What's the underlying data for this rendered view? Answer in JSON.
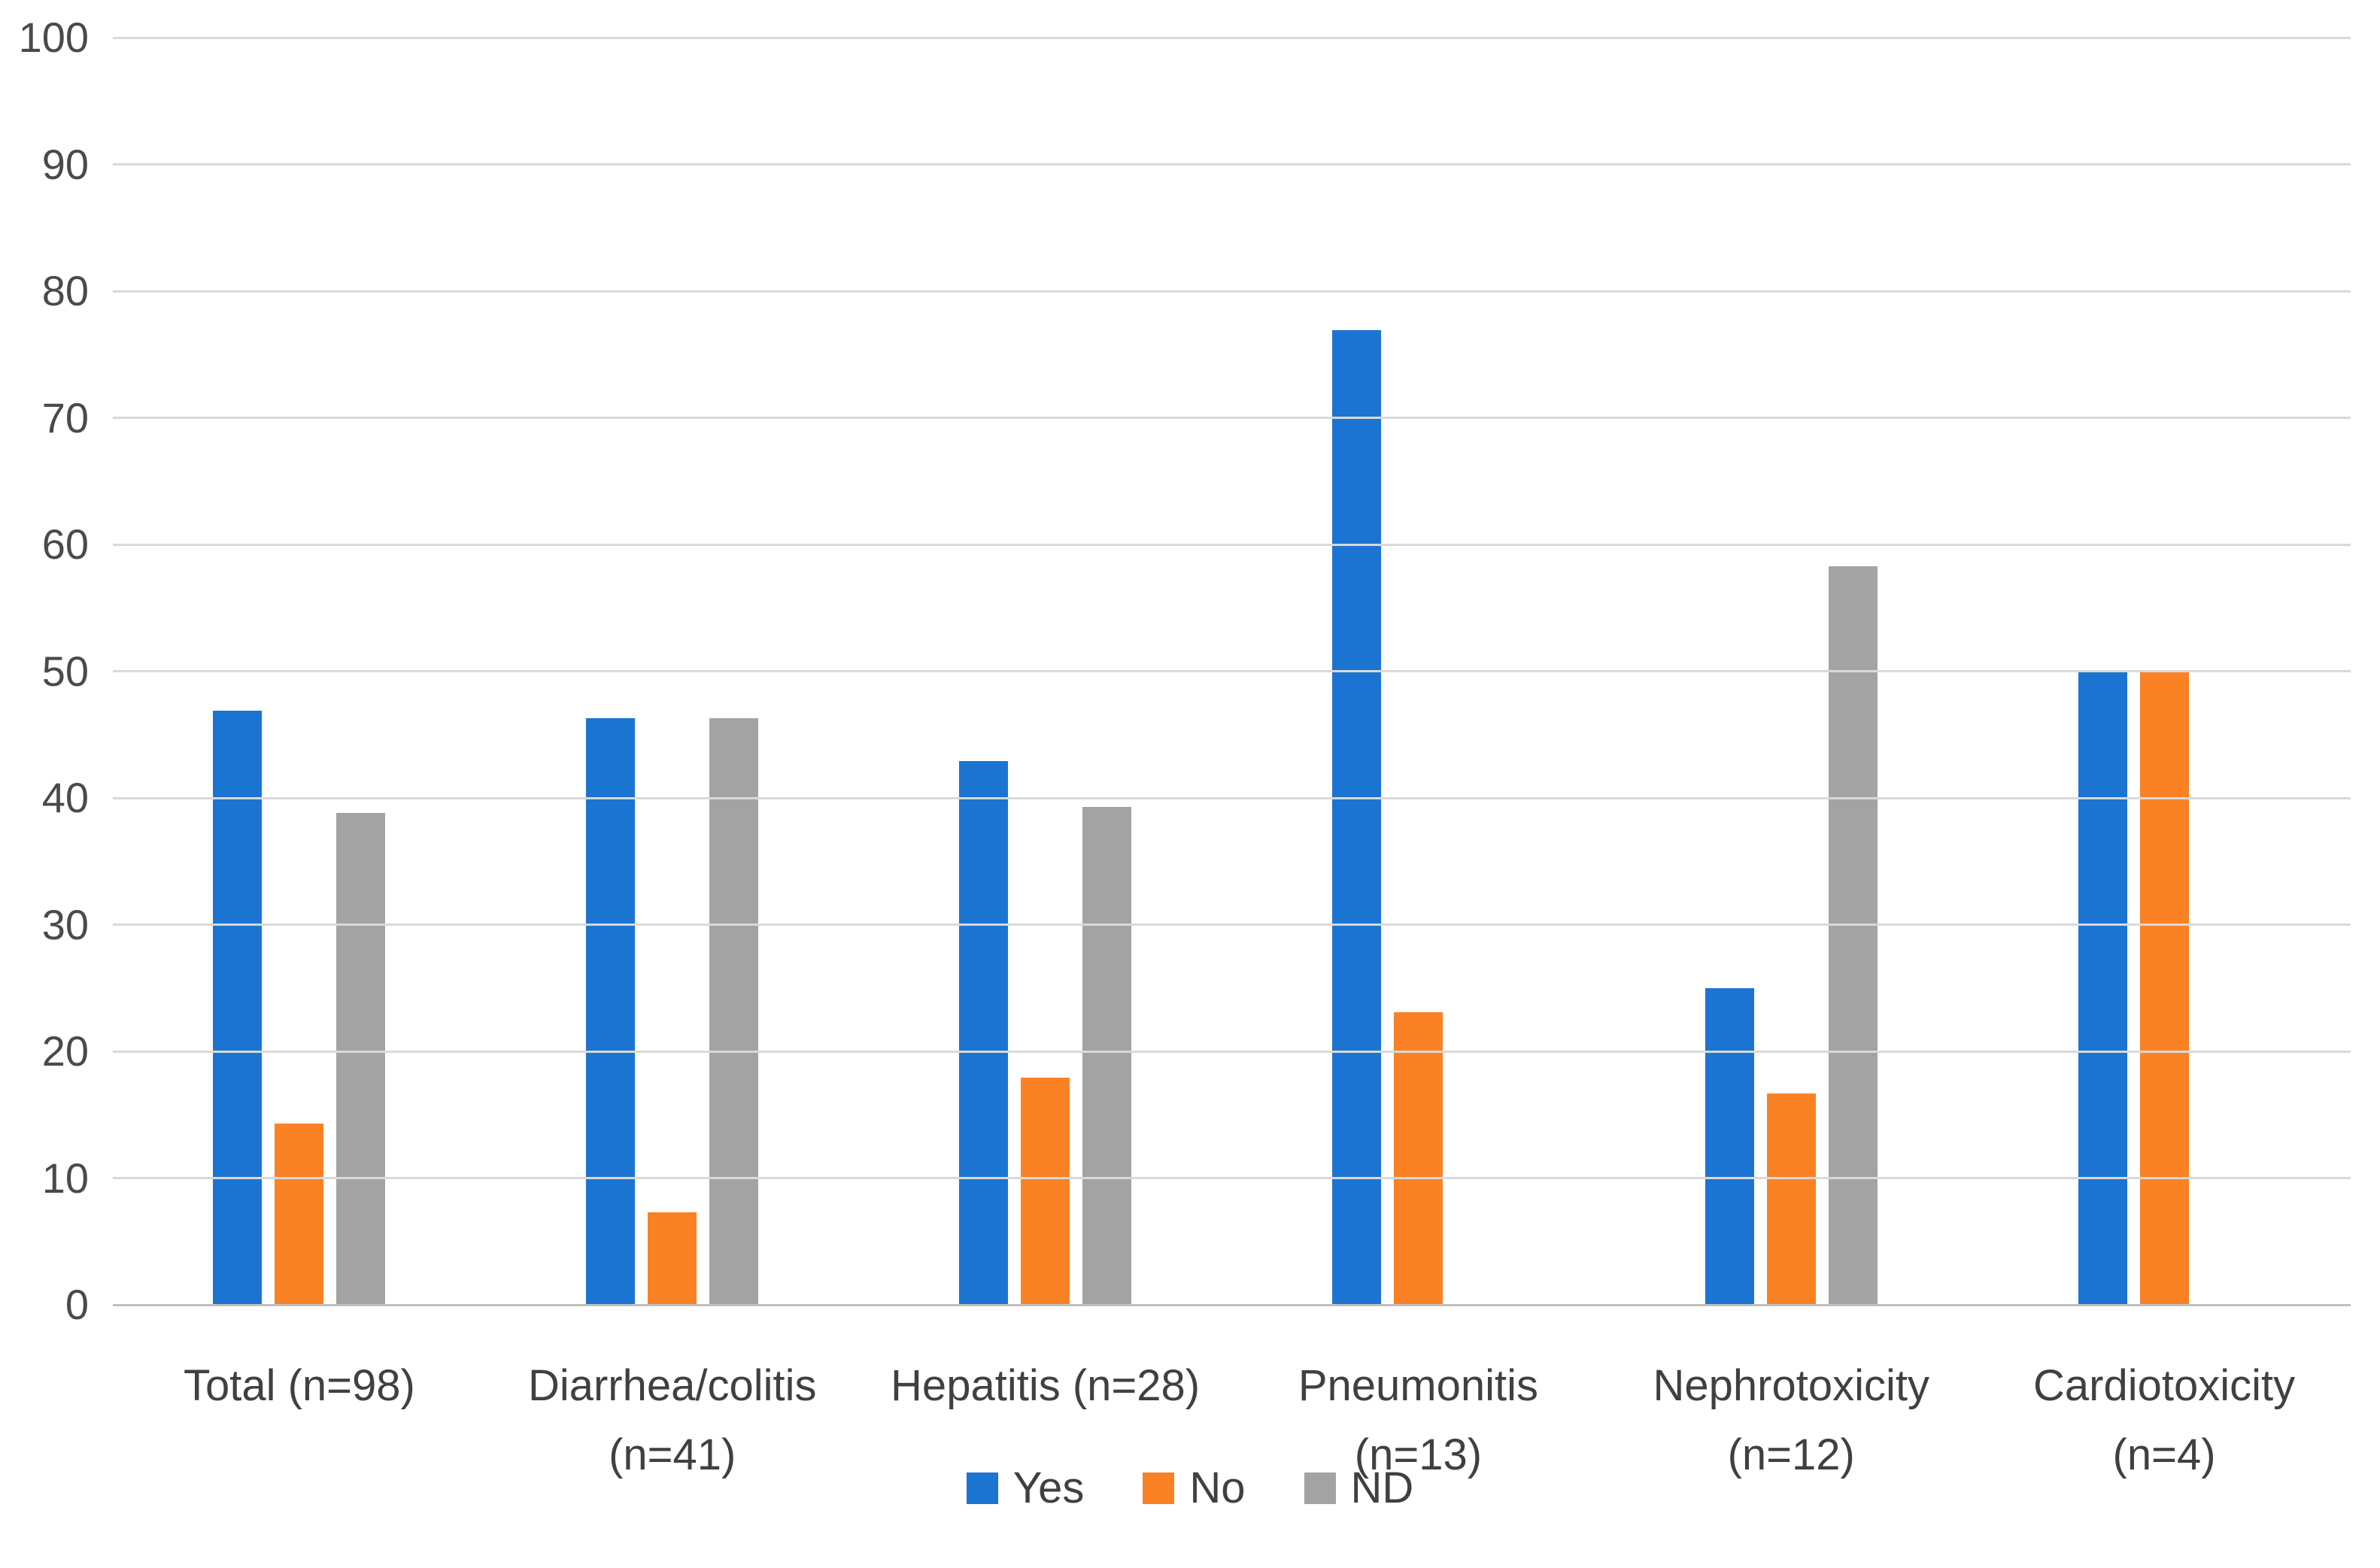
{
  "chart_data": {
    "type": "bar",
    "title": "",
    "xlabel": "",
    "ylabel": "",
    "ylim": [
      0,
      100
    ],
    "yticks": [
      0,
      10,
      20,
      30,
      40,
      50,
      60,
      70,
      80,
      90,
      100
    ],
    "grid": true,
    "legend_position": "bottom",
    "categories": [
      {
        "label": "Total (n=98)",
        "lines": [
          "Total (n=98)"
        ]
      },
      {
        "label": "Diarrhea/colitis (n=41)",
        "lines": [
          "Diarrhea/colitis",
          "(n=41)"
        ]
      },
      {
        "label": "Hepatitis (n=28)",
        "lines": [
          "Hepatitis (n=28)"
        ]
      },
      {
        "label": "Pneumonitis (n=13)",
        "lines": [
          "Pneumonitis",
          "(n=13)"
        ]
      },
      {
        "label": "Nephrotoxicity (n=12)",
        "lines": [
          "Nephrotoxicity",
          "(n=12)"
        ]
      },
      {
        "label": "Cardiotoxicity (n=4)",
        "lines": [
          "Cardiotoxicity",
          "(n=4)"
        ]
      }
    ],
    "series": [
      {
        "name": "Yes",
        "color": "#1B74D1",
        "values": [
          46.9,
          46.3,
          42.9,
          76.9,
          25.0,
          50.0
        ]
      },
      {
        "name": "No",
        "color": "#FB8125",
        "values": [
          14.3,
          7.3,
          17.9,
          23.1,
          16.7,
          50.0
        ]
      },
      {
        "name": "ND",
        "color": "#A3A3A3",
        "values": [
          38.8,
          46.3,
          39.3,
          0,
          58.3,
          0
        ]
      }
    ],
    "colors": {
      "gridline": "#D9D9D9",
      "axis_line": "#BFBFBF",
      "tick_label": "#4A4A4A",
      "category_label": "#404040",
      "legend_label": "#404040",
      "background": "#FFFFFF"
    }
  }
}
